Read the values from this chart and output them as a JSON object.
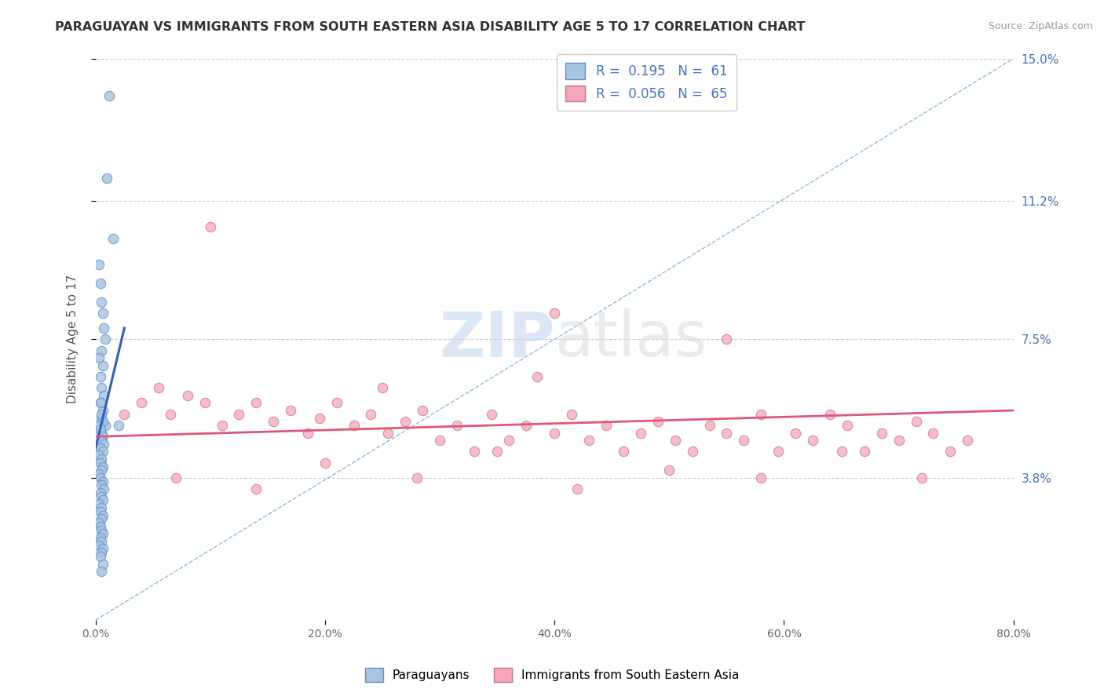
{
  "title": "PARAGUAYAN VS IMMIGRANTS FROM SOUTH EASTERN ASIA DISABILITY AGE 5 TO 17 CORRELATION CHART",
  "source": "Source: ZipAtlas.com",
  "ylabel": "Disability Age 5 to 17",
  "xlim": [
    0.0,
    80.0
  ],
  "ylim": [
    0.0,
    15.0
  ],
  "xticks": [
    0.0,
    20.0,
    40.0,
    60.0,
    80.0
  ],
  "ytick_labels": [
    "3.8%",
    "7.5%",
    "11.2%",
    "15.0%"
  ],
  "ytick_values": [
    3.8,
    7.5,
    11.2,
    15.0
  ],
  "R_blue": 0.195,
  "N_blue": 61,
  "R_pink": 0.056,
  "N_pink": 65,
  "blue_color": "#a8c4e0",
  "pink_color": "#f4a8b8",
  "blue_line_color": "#3060c0",
  "pink_line_color": "#e05878",
  "blue_dot_edge": "#6090c8",
  "pink_dot_edge": "#d07090",
  "ref_line_color": "#90b8e0",
  "legend_label_blue": "Paraguayans",
  "legend_label_pink": "Immigrants from South Eastern Asia",
  "watermark": "ZIPatlas",
  "blue_scatter_x": [
    1.2,
    1.0,
    1.5,
    0.3,
    0.4,
    0.5,
    0.6,
    0.7,
    0.8,
    0.5,
    0.3,
    0.6,
    0.4,
    0.5,
    0.7,
    0.4,
    0.6,
    0.5,
    0.8,
    0.4,
    0.5,
    0.6,
    0.3,
    0.5,
    0.4,
    0.6,
    0.5,
    0.7,
    0.4,
    0.6,
    0.3,
    0.5,
    0.4,
    0.6,
    0.5,
    0.3,
    0.4,
    0.6,
    0.5,
    0.7,
    0.4,
    0.5,
    0.6,
    0.3,
    0.5,
    0.4,
    0.6,
    0.5,
    0.3,
    0.4,
    0.5,
    0.6,
    0.4,
    0.5,
    0.3,
    0.6,
    0.5,
    0.4,
    0.6,
    0.5,
    2.0
  ],
  "blue_scatter_y": [
    14.0,
    11.8,
    10.2,
    9.5,
    9.0,
    8.5,
    8.2,
    7.8,
    7.5,
    7.2,
    7.0,
    6.8,
    6.5,
    6.2,
    6.0,
    5.8,
    5.6,
    5.4,
    5.2,
    5.8,
    5.5,
    5.3,
    5.2,
    5.0,
    5.1,
    4.9,
    4.8,
    4.7,
    4.6,
    4.5,
    4.4,
    4.3,
    4.2,
    4.1,
    4.0,
    3.9,
    3.8,
    3.7,
    3.6,
    3.5,
    3.4,
    3.3,
    3.2,
    3.1,
    3.0,
    2.9,
    2.8,
    2.7,
    2.6,
    2.5,
    2.4,
    2.3,
    2.2,
    2.1,
    2.0,
    1.9,
    1.8,
    1.7,
    1.5,
    1.3,
    5.2
  ],
  "pink_scatter_x": [
    2.5,
    4.0,
    5.5,
    6.5,
    8.0,
    9.5,
    11.0,
    12.5,
    14.0,
    15.5,
    17.0,
    18.5,
    19.5,
    21.0,
    22.5,
    24.0,
    25.5,
    27.0,
    28.5,
    30.0,
    31.5,
    33.0,
    34.5,
    36.0,
    37.5,
    38.5,
    40.0,
    41.5,
    43.0,
    44.5,
    46.0,
    47.5,
    49.0,
    50.5,
    52.0,
    53.5,
    55.0,
    56.5,
    58.0,
    59.5,
    61.0,
    62.5,
    64.0,
    65.5,
    67.0,
    68.5,
    70.0,
    71.5,
    73.0,
    74.5,
    76.0,
    7.0,
    14.0,
    20.0,
    28.0,
    35.0,
    42.0,
    50.0,
    58.0,
    65.0,
    72.0,
    10.0,
    25.0,
    40.0,
    55.0
  ],
  "pink_scatter_y": [
    5.5,
    5.8,
    6.2,
    5.5,
    6.0,
    5.8,
    5.2,
    5.5,
    5.8,
    5.3,
    5.6,
    5.0,
    5.4,
    5.8,
    5.2,
    5.5,
    5.0,
    5.3,
    5.6,
    4.8,
    5.2,
    4.5,
    5.5,
    4.8,
    5.2,
    6.5,
    5.0,
    5.5,
    4.8,
    5.2,
    4.5,
    5.0,
    5.3,
    4.8,
    4.5,
    5.2,
    5.0,
    4.8,
    5.5,
    4.5,
    5.0,
    4.8,
    5.5,
    5.2,
    4.5,
    5.0,
    4.8,
    5.3,
    5.0,
    4.5,
    4.8,
    3.8,
    3.5,
    4.2,
    3.8,
    4.5,
    3.5,
    4.0,
    3.8,
    4.5,
    3.8,
    10.5,
    6.2,
    8.2,
    7.5
  ],
  "blue_trend_x0": 0.0,
  "blue_trend_y0": 4.6,
  "blue_trend_x1": 2.5,
  "blue_trend_y1": 7.8,
  "pink_trend_x0": 0.0,
  "pink_trend_y0": 4.9,
  "pink_trend_x1": 80.0,
  "pink_trend_y1": 5.6,
  "ref_line_x0": 0.0,
  "ref_line_y0": 0.0,
  "ref_line_x1": 80.0,
  "ref_line_y1": 15.0
}
